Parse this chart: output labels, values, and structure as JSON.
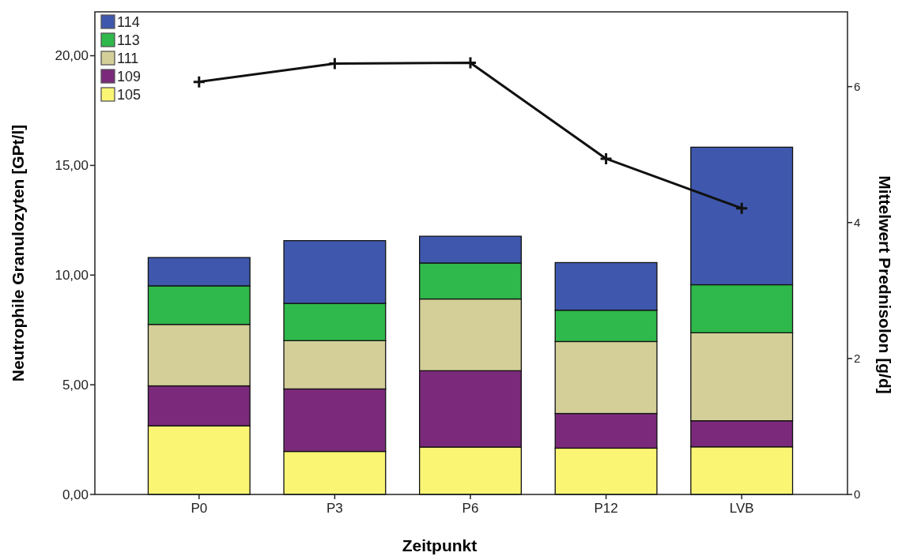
{
  "chart_data": {
    "type": "bar",
    "stacked": true,
    "xlabel": "Zeitpunkt",
    "ylabel": "Neutrophile Granulozyten [GPt/l]",
    "y2label": "Mittelwert Prednisolon [g/d]",
    "categories": [
      "P0",
      "P3",
      "P6",
      "P12",
      "LVB"
    ],
    "series": [
      {
        "name": "105",
        "color": "#fbf574",
        "values": [
          3.13,
          1.96,
          2.16,
          2.11,
          2.17
        ]
      },
      {
        "name": "109",
        "color": "#7b2a7b",
        "values": [
          1.82,
          2.85,
          3.48,
          1.58,
          1.19
        ]
      },
      {
        "name": "111",
        "color": "#d4cf98",
        "values": [
          2.8,
          2.2,
          3.27,
          3.28,
          4.01
        ]
      },
      {
        "name": "113",
        "color": "#2fb84b",
        "values": [
          1.76,
          1.7,
          1.64,
          1.43,
          2.19
        ]
      },
      {
        "name": "114",
        "color": "#3f58ad",
        "values": [
          1.29,
          2.86,
          1.22,
          2.17,
          6.27
        ]
      },
      {
        "type": "line",
        "axis": "y2",
        "color": "#111111",
        "marker": "cross",
        "values": [
          6.07,
          6.34,
          6.35,
          4.94,
          4.21
        ]
      }
    ],
    "ylim": [
      0,
      22
    ],
    "yticks": [
      {
        "value": 0,
        "label": "0,00"
      },
      {
        "value": 5,
        "label": "5,00"
      },
      {
        "value": 10,
        "label": "10,00"
      },
      {
        "value": 15,
        "label": "15,00"
      },
      {
        "value": 20,
        "label": "20,00"
      }
    ],
    "y2lim": [
      0,
      7.1
    ],
    "y2ticks": [
      0,
      2,
      4,
      6
    ],
    "legend": "top left",
    "grid": false
  }
}
